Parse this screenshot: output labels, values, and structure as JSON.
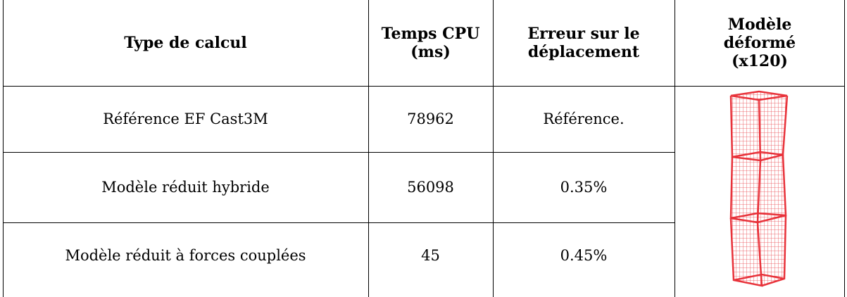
{
  "table": {
    "header": [
      "Type de calcul",
      "Temps CPU (ms)",
      "Erreur sur le déplacement",
      "Modèle déformé (x120)"
    ],
    "rows": [
      [
        "Référence EF Cast3M",
        "78962",
        "Référence."
      ],
      [
        "Modèle réduit hybride",
        "56098",
        "0.35%"
      ],
      [
        "Modèle réduit à forces couplées",
        "45",
        "0.45%"
      ]
    ]
  }
}
